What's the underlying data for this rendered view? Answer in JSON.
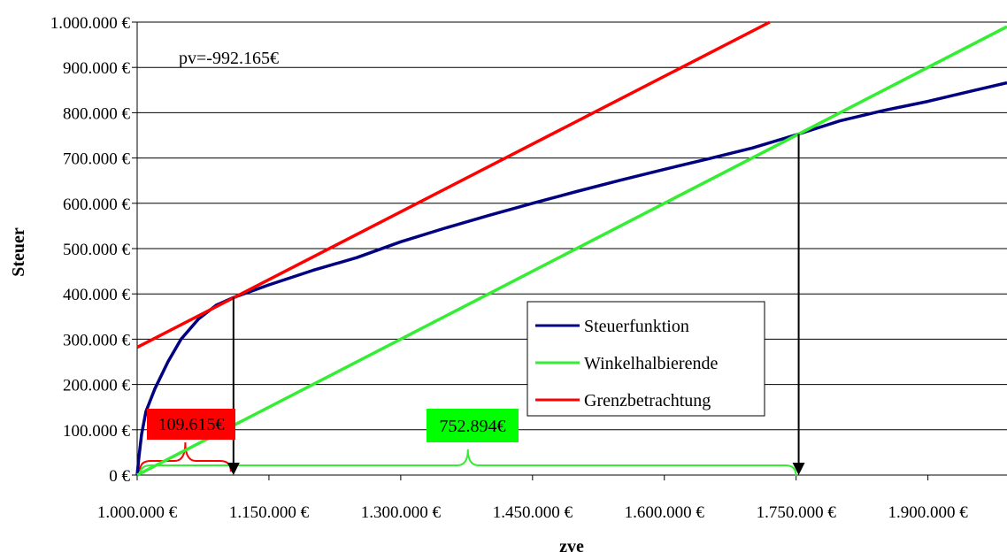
{
  "chart_data": {
    "type": "line",
    "xlabel": "zve",
    "ylabel": "Steuer",
    "xlim": [
      1000000,
      1990000
    ],
    "ylim": [
      0,
      1000000
    ],
    "x_ticks": [
      1000000,
      1150000,
      1300000,
      1450000,
      1600000,
      1750000,
      1900000
    ],
    "x_tick_labels": [
      "1.000.000 €",
      "1.150.000 €",
      "1.300.000 €",
      "1.450.000 €",
      "1.600.000 €",
      "1.750.000 €",
      "1.900.000 €"
    ],
    "y_ticks": [
      0,
      100000,
      200000,
      300000,
      400000,
      500000,
      600000,
      700000,
      800000,
      900000,
      1000000
    ],
    "y_tick_labels": [
      "0 €",
      "100.000 €",
      "200.000 €",
      "300.000 €",
      "400.000 €",
      "500.000 €",
      "600.000 €",
      "700.000 €",
      "800.000 €",
      "900.000 €",
      "1.000.000 €"
    ],
    "grid": true,
    "legend_position": "center-right",
    "series": [
      {
        "name": "Steuerfunktion",
        "color": "#000080",
        "x": [
          1000000,
          1002000,
          1005000,
          1010000,
          1020000,
          1035000,
          1050000,
          1070000,
          1090000,
          1109615,
          1150000,
          1200000,
          1250000,
          1300000,
          1350000,
          1400000,
          1450000,
          1500000,
          1550000,
          1600000,
          1650000,
          1700000,
          1752894,
          1800000,
          1850000,
          1900000,
          1950000,
          1990000
        ],
        "y": [
          0,
          40000,
          90000,
          140000,
          190000,
          250000,
          300000,
          345000,
          375000,
          392000,
          420000,
          452000,
          480000,
          515000,
          545000,
          573000,
          600000,
          626000,
          651000,
          675000,
          698000,
          722000,
          752894,
          782000,
          805000,
          825000,
          848000,
          866000
        ]
      },
      {
        "name": "Winkelhalbierende",
        "color": "#33ee33",
        "x": [
          1000000,
          1990000
        ],
        "y": [
          0,
          990000
        ]
      },
      {
        "name": "Grenzbetrachtung",
        "color": "#ff0000",
        "x": [
          1000000,
          1720000
        ],
        "y": [
          282000,
          1000000
        ]
      }
    ],
    "annotations": [
      {
        "text": "pv=-992.165€"
      },
      {
        "text": "109.615€",
        "bg": "#ff0000"
      },
      {
        "text": "752.894€",
        "bg": "#00ff00"
      }
    ],
    "arrows": [
      {
        "x": 1109615,
        "y_from": 392000,
        "y_to": 0
      },
      {
        "x": 1752894,
        "y_from": 752894,
        "y_to": 0
      }
    ],
    "braces": [
      {
        "x_from": 1000000,
        "x_to": 1109615,
        "color": "#ff0000"
      },
      {
        "x_from": 1000000,
        "x_to": 1752894,
        "color": "#33ee33"
      }
    ]
  }
}
